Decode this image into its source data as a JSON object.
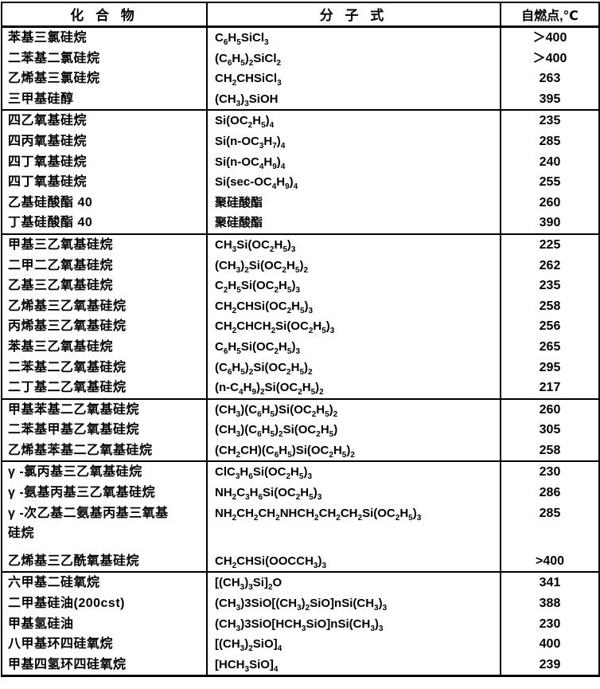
{
  "page": {
    "background": "#ffffff",
    "text_color": "#000000",
    "border_color": "#000000"
  },
  "table": {
    "headers": [
      "化 合 物",
      "分 子 式",
      "自燃点,℃"
    ],
    "groups": [
      {
        "rows": [
          {
            "name": "苯基三氯硅烷",
            "formula": "C~6~H~5~SiCl~3~",
            "temp": "＞400"
          },
          {
            "name": "二苯基二氯硅烷",
            "formula": "(C~6~H~5~)~2~SiCl~2~",
            "temp": "＞400"
          },
          {
            "name": "乙烯基三氯硅烷",
            "formula": "CH~2~CHSiCl~3~",
            "temp": "263"
          },
          {
            "name": "三甲基硅醇",
            "formula": "(CH~3~)~3~SiOH",
            "temp": "395"
          }
        ]
      },
      {
        "rows": [
          {
            "name": "四乙氧基硅烷",
            "formula": "Si(OC~2~H~5~)~4~",
            "temp": "235"
          },
          {
            "name": "四丙氧基硅烷",
            "formula": "Si(n-OC~3~H~7~)~4~",
            "temp": "285"
          },
          {
            "name": "四丁氧基硅烷",
            "formula": "Si(n-OC~4~H~9~)~4~",
            "temp": "240"
          },
          {
            "name": "四丁氧基硅烷",
            "formula": "Si(sec-OC~4~H~9~)~4~",
            "temp": "255"
          },
          {
            "name": "乙基硅酸酯 40",
            "formula": "聚硅酸酯",
            "temp": "260"
          },
          {
            "name": "丁基硅酸酯 40",
            "formula": "聚硅酸酯",
            "temp": "390"
          }
        ]
      },
      {
        "rows": [
          {
            "name": "甲基三乙氧基硅烷",
            "formula": "CH~3~Si(OC~2~H~5~)~3~",
            "temp": "225"
          },
          {
            "name": "二甲二乙氧基硅烷",
            "formula": "(CH~3~)~2~Si(OC~2~H~5~)~2~",
            "temp": "262"
          },
          {
            "name": "乙基三乙氧基硅烷",
            "formula": "C~2~H~5~Si(OC~2~H~5~)~3~",
            "temp": "235"
          },
          {
            "name": "乙烯基三乙氧基硅烷",
            "formula": "CH~2~CHSi(OC~2~H~5~)~3~",
            "temp": "258"
          },
          {
            "name": "丙烯基三乙氧基硅烷",
            "formula": "CH~2~CHCH~2~Si(OC~2~H~5~)~3~",
            "temp": "256"
          },
          {
            "name": "苯基三乙氧基硅烷",
            "formula": "C~6~H~5~Si(OC~2~H~5~)~3~",
            "temp": "265"
          },
          {
            "name": "二苯基二乙氧基硅烷",
            "formula": "(C~6~H~5~)~2~Si(OC~2~H~5~)~2~",
            "temp": "295"
          },
          {
            "name": "二丁基二乙氧基硅烷",
            "formula": "(n-C~4~H~9~)~2~Si(OC~2~H~5~)~2~",
            "temp": "217"
          }
        ]
      },
      {
        "rows": [
          {
            "name": "甲基苯基二乙氧基硅烷",
            "formula": "(CH~3~)(C~6~H~5~)Si(OC~2~H~5~)~2~",
            "temp": "260"
          },
          {
            "name": "二苯基甲基乙氧基硅烷",
            "formula": "(CH~3~)(C~6~H~5~)~2~Si(OC~2~H~5~)",
            "temp": "305"
          },
          {
            "name": "乙烯基苯基二乙氧基硅烷",
            "formula": "(CH~2~CH)(C~6~H~5~)Si(OC~2~H~5~)~2~",
            "temp": "258"
          }
        ]
      },
      {
        "rows": [
          {
            "name": "γ -氯丙基三乙氧基硅烷",
            "formula": "ClC~3~H~6~Si(OC~2~H~5~)~3~",
            "temp": "230"
          },
          {
            "name": "γ -氨基丙基三乙氧基硅烷",
            "formula": "NH~2~C~3~H~6~Si(OC~2~H~5~)~3~",
            "temp": "286"
          },
          {
            "name": "γ -次乙基二氨基丙基三氧基\n硅烷",
            "formula": "NH~2~CH~2~CH~2~NHCH~2~CH~2~CH~2~Si(OC~2~H~5~)~3~",
            "temp": "285"
          },
          {
            "name": "乙烯基三乙酰氧基硅烷",
            "formula": "CH~2~CHSi(OOCCH~3~)~3~",
            "temp": ">400"
          }
        ]
      },
      {
        "rows": [
          {
            "name": "六甲基二硅氧烷",
            "formula": "[(CH~3~)~3~Si]~2~O",
            "temp": "341"
          },
          {
            "name": "二甲基硅油(200cst)",
            "formula": "(CH~3~)3SiO[(CH~3~)~2~SiO]nSi(CH~3~)~3~",
            "temp": "388"
          },
          {
            "name": "甲基氢硅油",
            "formula": "(CH~3~)3SiO[HCH~3~SiO]nSi(CH~3~)~3~",
            "temp": "230"
          },
          {
            "name": "八甲基环四硅氧烷",
            "formula": "[(CH~3~)~2~SiO]~4~",
            "temp": "400"
          },
          {
            "name": "甲基四氢环四硅氧烷",
            "formula": "[HCH~3~SiO]~4~",
            "temp": "239"
          }
        ]
      }
    ]
  }
}
